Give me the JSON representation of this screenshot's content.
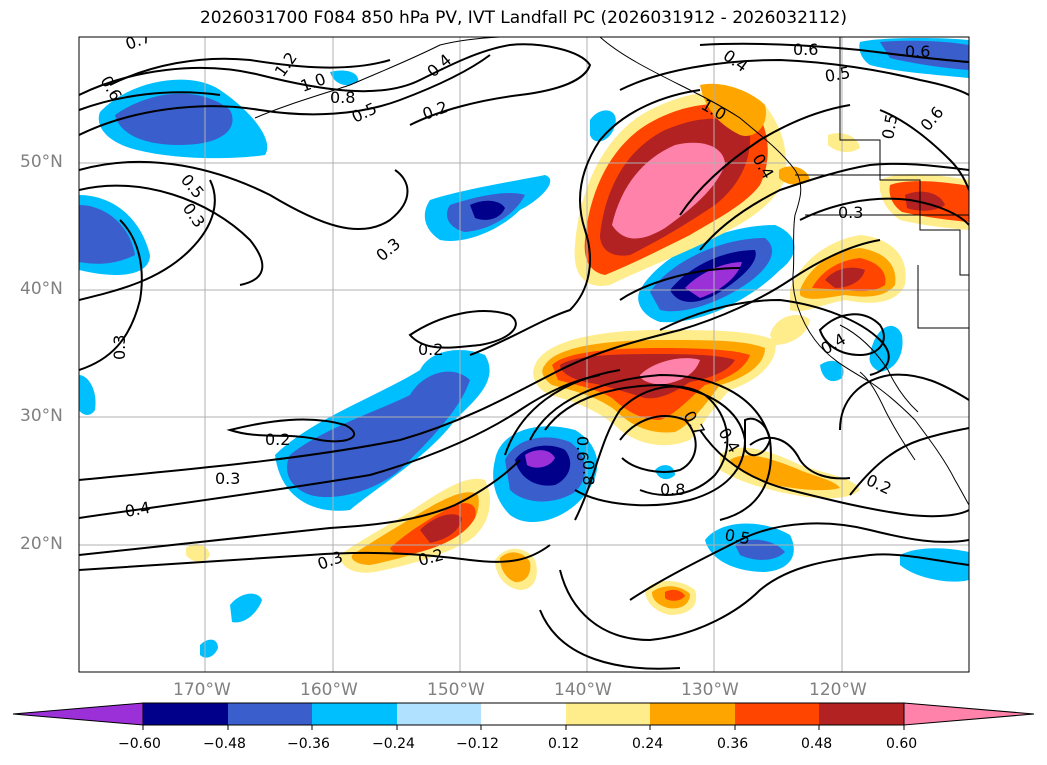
{
  "title": "2026031700 F084 850 hPa PV, IVT Landfall PC (2026031912 - 2026032112)",
  "lat_labels": [
    "50°N",
    "40°N",
    "30°N",
    "20°N"
  ],
  "lon_labels": [
    "170°W",
    "160°W",
    "150°W",
    "140°W",
    "130°W",
    "120°W"
  ],
  "colorbar": {
    "ticks": [
      "−0.60",
      "−0.48",
      "−0.36",
      "−0.24",
      "−0.12",
      "0.12",
      "0.24",
      "0.36",
      "0.48",
      "0.60"
    ],
    "colors": [
      "#9b30d9",
      "#00008b",
      "#3a5fcd",
      "#00bfff",
      "#b0e2ff",
      "#ffffff",
      "#ffec8b",
      "#ffa500",
      "#ff4500",
      "#b22222",
      "#ff82ab"
    ]
  },
  "contour_labels": [
    "0.7",
    "0.6",
    "1.2",
    "1.0",
    "0.8",
    "0.5",
    "0.4",
    "0.2",
    "0.6",
    "0.5",
    "0.4",
    "0.6",
    "0.5",
    "0.6",
    "0.3",
    "0.3",
    "0.2",
    "0.2",
    "0.3",
    "0.4",
    "0.3",
    "0.2",
    "0.8",
    "0.7",
    "0.4",
    "0.6",
    "0.8",
    "0.5",
    "0.2",
    "0.4",
    "0.3",
    "0.5",
    "1.0",
    "0.4",
    "0.3"
  ]
}
